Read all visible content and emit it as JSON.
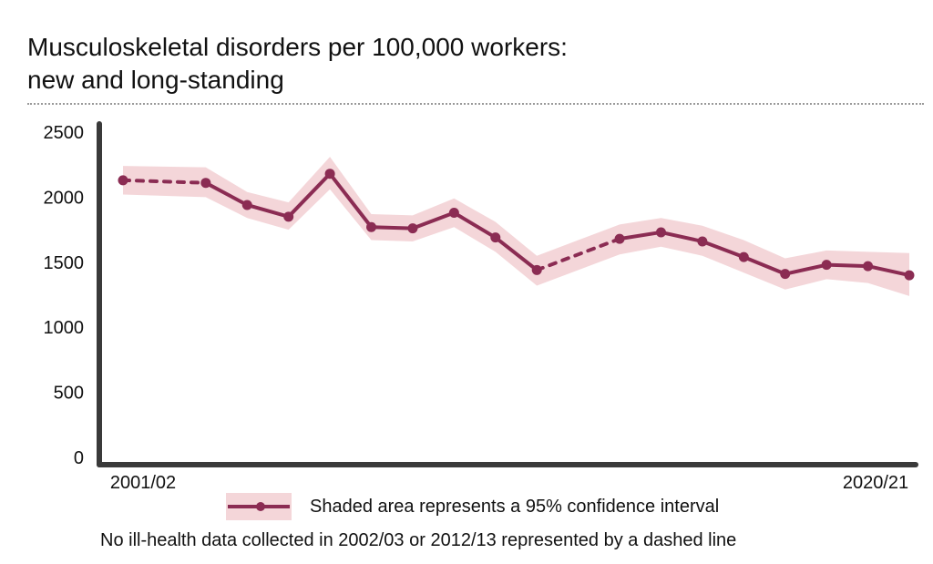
{
  "title_line1": "Musculoskeletal disorders per 100,000 workers:",
  "title_line2": "new and long-standing",
  "legend_text": "Shaded area represents a 95% confidence interval",
  "note": "No ill-health data collected in 2002/03 or 2012/13 represented by a dashed line",
  "colors": {
    "line": "#8b2c53",
    "ci": "#f4d6d9",
    "axis": "#3a3a3a"
  },
  "chart_data": {
    "type": "line",
    "title": "Musculoskeletal disorders per 100,000 workers: new and long-standing",
    "x": [
      "2001/02",
      "2002/03",
      "2003/04",
      "2004/05",
      "2005/06",
      "2006/07",
      "2007/08",
      "2008/09",
      "2009/10",
      "2010/11",
      "2011/12",
      "2012/13",
      "2013/14",
      "2014/15",
      "2015/16",
      "2016/17",
      "2017/18",
      "2018/19",
      "2019/20",
      "2020/21"
    ],
    "xtick_labels": [
      "2001/02",
      "2020/21"
    ],
    "yticks": [
      0,
      500,
      1000,
      1500,
      2000,
      2500
    ],
    "ylim": [
      0,
      2500
    ],
    "series": [
      {
        "values": [
          2130,
          null,
          2110,
          1940,
          1850,
          2180,
          1770,
          1760,
          1880,
          1690,
          1440,
          null,
          1680,
          1730,
          1660,
          1540,
          1410,
          1480,
          1470,
          1400
        ],
        "ci_upper": [
          2240,
          null,
          2230,
          2040,
          1960,
          2310,
          1870,
          1860,
          1990,
          1810,
          1550,
          null,
          1790,
          1840,
          1780,
          1670,
          1530,
          1590,
          1580,
          1570
        ],
        "ci_lower": [
          2020,
          null,
          2000,
          1840,
          1750,
          2060,
          1670,
          1660,
          1770,
          1580,
          1320,
          null,
          1560,
          1620,
          1550,
          1420,
          1290,
          1370,
          1340,
          1240
        ]
      }
    ],
    "missing_years": [
      "2002/03",
      "2012/13"
    ],
    "grid": false,
    "legend": "bottom"
  }
}
